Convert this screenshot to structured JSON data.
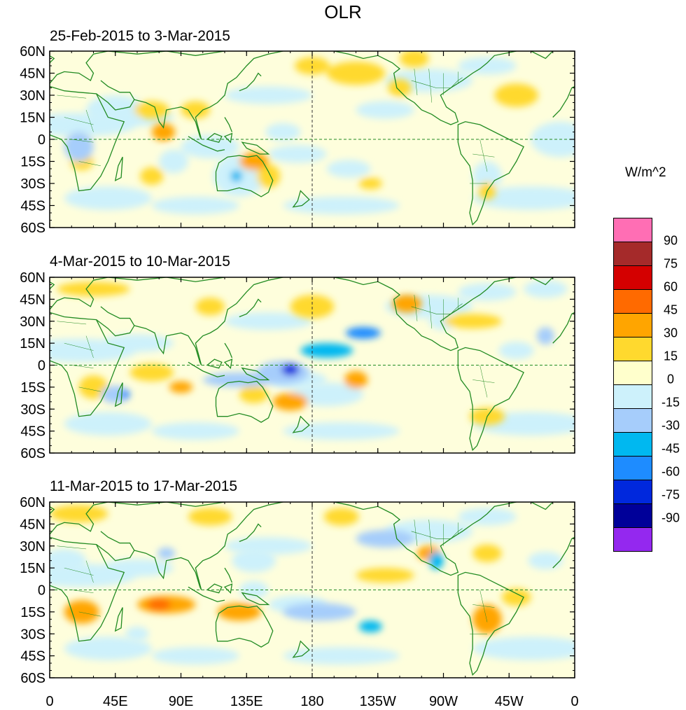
{
  "title": "OLR",
  "unit_label": "W/m^2",
  "panels": [
    {
      "title": "25-Feb-2015 to 3-Mar-2015"
    },
    {
      "title": "4-Mar-2015 to 10-Mar-2015"
    },
    {
      "title": "11-Mar-2015 to 17-Mar-2015"
    }
  ],
  "lat_labels": [
    "60N",
    "45N",
    "30N",
    "15N",
    "0",
    "15S",
    "30S",
    "45S",
    "60S"
  ],
  "lon_labels": [
    "0",
    "45E",
    "90E",
    "135E",
    "180",
    "135W",
    "90W",
    "45W",
    "0"
  ],
  "colorbar": {
    "labels": [
      "90",
      "75",
      "60",
      "45",
      "30",
      "15",
      "0",
      "-15",
      "-30",
      "-45",
      "-60",
      "-75",
      "-90"
    ],
    "colors": [
      "#ff6eb4",
      "#a52a2a",
      "#d40000",
      "#ff6a00",
      "#ffa500",
      "#ffd92e",
      "#ffffcc",
      "#cdf1fb",
      "#a6cdfb",
      "#00b8f0",
      "#1e8cff",
      "#0028dd",
      "#000099",
      "#9428ef"
    ]
  },
  "colors": {
    "land_outline": "#228b22",
    "background_neutral": "#fefedc",
    "light_negative": "#cdf1fb"
  },
  "anomalies": [
    [
      {
        "lon": 350,
        "lat": 0,
        "level": -1,
        "rx": 20,
        "ry": 12
      },
      {
        "lon": 20,
        "lat": -5,
        "level": -2,
        "rx": 10,
        "ry": 10
      },
      {
        "lon": 22,
        "lat": -15,
        "level": 1,
        "rx": 8,
        "ry": 6
      },
      {
        "lon": 45,
        "lat": 20,
        "level": -1,
        "rx": 20,
        "ry": 10
      },
      {
        "lon": 70,
        "lat": 20,
        "level": 1,
        "rx": 12,
        "ry": 6
      },
      {
        "lon": 78,
        "lat": 5,
        "level": 2,
        "rx": 8,
        "ry": 6
      },
      {
        "lon": 100,
        "lat": 20,
        "level": 1,
        "rx": 10,
        "ry": 6
      },
      {
        "lon": 85,
        "lat": -15,
        "level": -1,
        "rx": 10,
        "ry": 8
      },
      {
        "lon": 70,
        "lat": -25,
        "level": 1,
        "rx": 8,
        "ry": 6
      },
      {
        "lon": 110,
        "lat": -5,
        "level": -1,
        "rx": 20,
        "ry": 8
      },
      {
        "lon": 130,
        "lat": -25,
        "level": -1,
        "rx": 18,
        "ry": 14
      },
      {
        "lon": 128,
        "lat": -25,
        "level": -3,
        "rx": 4,
        "ry": 4
      },
      {
        "lon": 140,
        "lat": -15,
        "level": 2,
        "rx": 10,
        "ry": 6
      },
      {
        "lon": 150,
        "lat": -25,
        "level": 1,
        "rx": 8,
        "ry": 8
      },
      {
        "lon": 160,
        "lat": 5,
        "level": -1,
        "rx": 12,
        "ry": 6
      },
      {
        "lon": 205,
        "lat": -20,
        "level": -1,
        "rx": 15,
        "ry": 6
      },
      {
        "lon": 220,
        "lat": -30,
        "level": 1,
        "rx": 8,
        "ry": 4
      },
      {
        "lon": 230,
        "lat": 20,
        "level": -1,
        "rx": 20,
        "ry": 6
      },
      {
        "lon": 240,
        "lat": 35,
        "level": 1,
        "rx": 8,
        "ry": 6
      },
      {
        "lon": 250,
        "lat": 55,
        "level": 1,
        "rx": 10,
        "ry": 6
      },
      {
        "lon": 210,
        "lat": 45,
        "level": 1,
        "rx": 20,
        "ry": 8
      },
      {
        "lon": 300,
        "lat": -25,
        "level": -1,
        "rx": 10,
        "ry": 10
      },
      {
        "lon": 300,
        "lat": -35,
        "level": 1,
        "rx": 6,
        "ry": 6
      },
      {
        "lon": 320,
        "lat": 30,
        "level": 1,
        "rx": 15,
        "ry": 8
      },
      {
        "lon": 180,
        "lat": 50,
        "level": 1,
        "rx": 12,
        "ry": 6
      }
    ],
    [
      {
        "lon": 45,
        "lat": -20,
        "level": -2,
        "rx": 10,
        "ry": 6
      },
      {
        "lon": 52,
        "lat": -20,
        "level": -4,
        "rx": 3,
        "ry": 3
      },
      {
        "lon": 30,
        "lat": -15,
        "level": 1,
        "rx": 10,
        "ry": 8
      },
      {
        "lon": 70,
        "lat": -5,
        "level": 1,
        "rx": 15,
        "ry": 6
      },
      {
        "lon": 90,
        "lat": -15,
        "level": 2,
        "rx": 8,
        "ry": 4
      },
      {
        "lon": 130,
        "lat": -10,
        "level": -2,
        "rx": 25,
        "ry": 5
      },
      {
        "lon": 160,
        "lat": -5,
        "level": -2,
        "rx": 18,
        "ry": 8
      },
      {
        "lon": 165,
        "lat": -3,
        "level": -5,
        "rx": 6,
        "ry": 4
      },
      {
        "lon": 190,
        "lat": 10,
        "level": -3,
        "rx": 18,
        "ry": 5
      },
      {
        "lon": 215,
        "lat": 22,
        "level": -4,
        "rx": 12,
        "ry": 4
      },
      {
        "lon": 190,
        "lat": -20,
        "level": -1,
        "rx": 25,
        "ry": 8
      },
      {
        "lon": 165,
        "lat": -25,
        "level": 2,
        "rx": 12,
        "ry": 6
      },
      {
        "lon": 140,
        "lat": -20,
        "level": 1,
        "rx": 10,
        "ry": 6
      },
      {
        "lon": 210,
        "lat": -10,
        "level": 2,
        "rx": 8,
        "ry": 6
      },
      {
        "lon": 180,
        "lat": 40,
        "level": 1,
        "rx": 15,
        "ry": 8
      },
      {
        "lon": 245,
        "lat": 42,
        "level": 2,
        "rx": 10,
        "ry": 6
      },
      {
        "lon": 270,
        "lat": 30,
        "level": -1,
        "rx": 10,
        "ry": 6
      },
      {
        "lon": 290,
        "lat": 30,
        "level": 1,
        "rx": 20,
        "ry": 5
      },
      {
        "lon": 340,
        "lat": 20,
        "level": -2,
        "rx": 6,
        "ry": 6
      },
      {
        "lon": 320,
        "lat": 10,
        "level": -1,
        "rx": 12,
        "ry": 6
      },
      {
        "lon": 300,
        "lat": -35,
        "level": 1,
        "rx": 12,
        "ry": 6
      },
      {
        "lon": 30,
        "lat": 52,
        "level": 1,
        "rx": 25,
        "ry": 5
      },
      {
        "lon": 110,
        "lat": 40,
        "level": 1,
        "rx": 10,
        "ry": 6
      },
      {
        "lon": 340,
        "lat": 52,
        "level": -1,
        "rx": 15,
        "ry": 6
      }
    ],
    [
      {
        "lon": 20,
        "lat": 52,
        "level": 1,
        "rx": 20,
        "ry": 6
      },
      {
        "lon": 10,
        "lat": 20,
        "level": -1,
        "rx": 15,
        "ry": 8
      },
      {
        "lon": 22,
        "lat": -15,
        "level": 2,
        "rx": 12,
        "ry": 8
      },
      {
        "lon": 80,
        "lat": -10,
        "level": 2,
        "rx": 20,
        "ry": 6
      },
      {
        "lon": 75,
        "lat": -10,
        "level": 3,
        "rx": 8,
        "ry": 4
      },
      {
        "lon": 80,
        "lat": 25,
        "level": -2,
        "rx": 6,
        "ry": 4
      },
      {
        "lon": 60,
        "lat": -30,
        "level": -1,
        "rx": 8,
        "ry": 5
      },
      {
        "lon": 130,
        "lat": -15,
        "level": 2,
        "rx": 15,
        "ry": 6
      },
      {
        "lon": 140,
        "lat": 20,
        "level": -1,
        "rx": 15,
        "ry": 8
      },
      {
        "lon": 185,
        "lat": -15,
        "level": -2,
        "rx": 25,
        "ry": 6
      },
      {
        "lon": 220,
        "lat": -25,
        "level": -3,
        "rx": 8,
        "ry": 4
      },
      {
        "lon": 230,
        "lat": 35,
        "level": -2,
        "rx": 20,
        "ry": 6
      },
      {
        "lon": 260,
        "lat": 25,
        "level": 2,
        "rx": 8,
        "ry": 5
      },
      {
        "lon": 265,
        "lat": 20,
        "level": -3,
        "rx": 5,
        "ry": 6
      },
      {
        "lon": 300,
        "lat": -20,
        "level": 2,
        "rx": 10,
        "ry": 10
      },
      {
        "lon": 320,
        "lat": -5,
        "level": 1,
        "rx": 10,
        "ry": 6
      },
      {
        "lon": 340,
        "lat": 20,
        "level": -1,
        "rx": 12,
        "ry": 6
      },
      {
        "lon": 230,
        "lat": 10,
        "level": 1,
        "rx": 20,
        "ry": 5
      },
      {
        "lon": 300,
        "lat": 25,
        "level": 1,
        "rx": 10,
        "ry": 6
      },
      {
        "lon": 110,
        "lat": 50,
        "level": 1,
        "rx": 15,
        "ry": 6
      },
      {
        "lon": 200,
        "lat": 50,
        "level": 1,
        "rx": 12,
        "ry": 6
      },
      {
        "lon": 140,
        "lat": 0,
        "level": -1,
        "rx": 10,
        "ry": 6
      }
    ]
  ]
}
